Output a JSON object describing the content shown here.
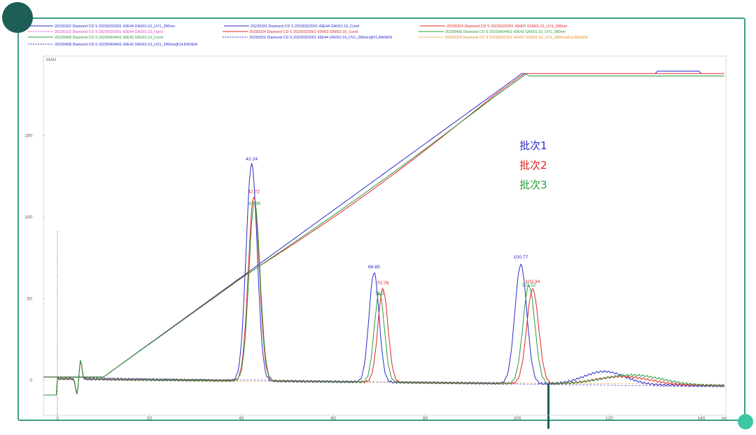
{
  "chart_data": {
    "type": "line",
    "ylabel": "mAU",
    "xlabel": "ml",
    "xlim": [
      -3,
      145
    ],
    "ylim": [
      -22,
      190
    ],
    "x_ticks": [
      0,
      20,
      40,
      60,
      80,
      100,
      120,
      140
    ],
    "y_ticks": [
      0,
      50,
      100,
      150
    ],
    "x_tick_labels": [
      "0",
      "20",
      "40",
      "60",
      "80",
      "100",
      "120",
      "140"
    ],
    "y_tick_labels": [
      "0",
      "50",
      "100",
      "150"
    ],
    "legend": [
      {
        "label": "20230322 Diamond CD S 20230322001 43E44 GN001:10_UV1_280nm",
        "color": "#2b2bc9",
        "style": "solid"
      },
      {
        "label": "20230322 Diamond CD S 20230322001 43E44 GN001:10_Cond",
        "color": "#2b2bc9",
        "style": "solid"
      },
      {
        "label": "20230324 Diamond CD S 20230323301 43H03 GN001:10_UV1_280nm",
        "color": "#e02424",
        "style": "solid"
      },
      {
        "label": "20230322 Diamond CD S 20230322001 43E44 GN001:10_Inject",
        "color": "#e040c0",
        "style": "dashed"
      },
      {
        "label": "20230324 Diamond CD S 20230323301 43H03 GN001:10_Cond",
        "color": "#e02424",
        "style": "solid"
      },
      {
        "label": "20230408 Diamond CD S 20230404401 43E42 GN001:10_UV1_280nm",
        "color": "#2a9a3a",
        "style": "solid"
      },
      {
        "label": "20230408 Diamond CD S 20230404401 43E42 GN001:10_Cond",
        "color": "#2a9a3a",
        "style": "solid"
      },
      {
        "label": "20230322 Diamond CD S 20230322001 43E44 GN001:10_UV1_280nm@01,BASEM",
        "color": "#2b2bc9",
        "style": "dashed"
      },
      {
        "label": "20230324 Diamond CD S 20230323301 43H03 GN001:10_UV1_280nm@11,BASEM",
        "color": "#e88a20",
        "style": "dashed"
      },
      {
        "label": "20230408 Diamond CD S 20230404401 43E42 GN001:10_UV1_280nm@14,BASEM",
        "color": "#2b2bc9",
        "style": "dashed"
      }
    ],
    "series": [
      {
        "name": "批次1",
        "color": "#2b2bc9",
        "peaks": [
          {
            "x": 42.24,
            "height": 133,
            "width": 1.2,
            "label": "42.24"
          },
          {
            "x": 68.85,
            "height": 67,
            "width": 1.1,
            "label": "68.85"
          },
          {
            "x": 100.77,
            "height": 73,
            "width": 1.3,
            "label": "100.77"
          }
        ]
      },
      {
        "name": "批次2",
        "color": "#e02424",
        "peaks": [
          {
            "x": 42.72,
            "height": 113,
            "width": 1.2,
            "label": "42.72"
          },
          {
            "x": 70.78,
            "height": 57,
            "width": 1.1,
            "label": "70.78"
          },
          {
            "x": 103.34,
            "height": 58,
            "width": 1.3,
            "label": "103.34"
          }
        ]
      },
      {
        "name": "批次3",
        "color": "#2a9a3a",
        "peaks": [
          {
            "x": 42.86,
            "height": 110,
            "width": 1.2,
            "label": "42.86"
          },
          {
            "x": 70.0,
            "height": 55,
            "width": 1.1,
            "label": "70.0"
          },
          {
            "x": 102.52,
            "height": 60,
            "width": 1.3,
            "label": "102.52"
          }
        ]
      }
    ],
    "gradient": [
      [
        -3,
        2
      ],
      [
        10,
        2
      ],
      [
        101,
        188
      ],
      [
        145,
        188
      ]
    ],
    "batch_labels": [
      "批次1",
      "批次2",
      "批次3"
    ]
  }
}
